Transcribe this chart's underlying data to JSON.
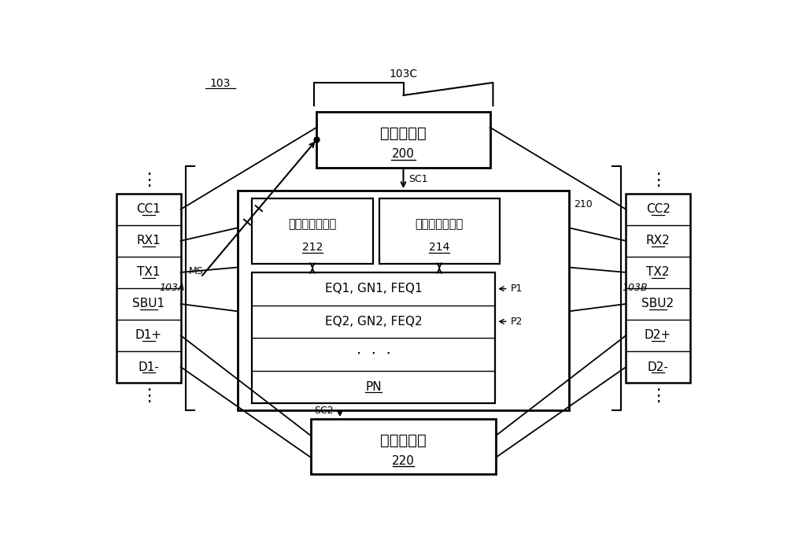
{
  "bg_color": "#ffffff",
  "fig_width": 10.0,
  "fig_height": 7.01,
  "label_103": "103",
  "label_103A": "103A",
  "label_103B": "103B",
  "label_103C": "103C",
  "left_box_labels": [
    "CC1",
    "RX1",
    "TX1",
    "SBU1",
    "D1+",
    "D1-"
  ],
  "right_box_labels": [
    "CC2",
    "RX2",
    "TX2",
    "SBU2",
    "D2+",
    "D2-"
  ],
  "ctrl_label1": "控制器电路",
  "ctrl_label2": "200",
  "switch_drv_label1": "转接驱动器电路",
  "switch_drv_label2": "212",
  "switch_tim_label1": "转接定时器电路",
  "switch_tim_label2": "214",
  "switch_label1": "交换器电路",
  "switch_label2": "220",
  "p_labels": [
    "EQ1, GN1, FEQ1",
    "EQ2, GN2, FEQ2",
    "⋅⋅⋅",
    "PN"
  ],
  "p_refs": [
    "P1",
    "P2",
    "",
    ""
  ],
  "label_MS": "MS",
  "label_SC1": "SC1",
  "label_SC2": "SC2",
  "label_210": "210"
}
